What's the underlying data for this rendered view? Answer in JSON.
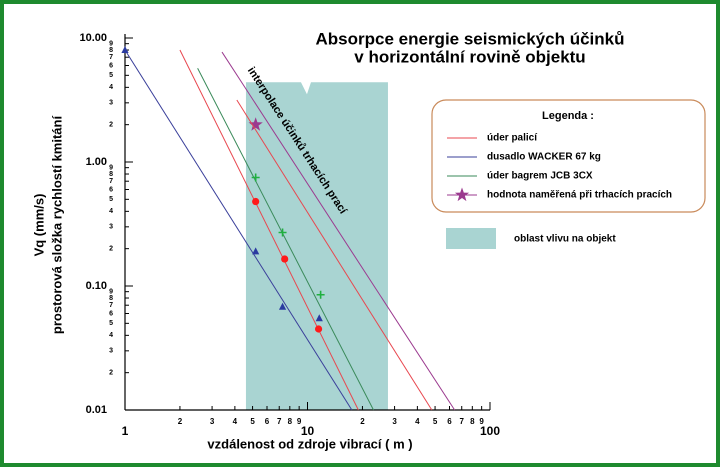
{
  "chart_data": {
    "type": "scatter",
    "title": "Absorpce energie seismických účinků",
    "subtitle": "v horizontální rovině objektu",
    "x_label": "vzdálenost od zdroje vibrací ( m )",
    "y_label": "Vq (mm/s)",
    "y_label_2": "prostorová složka rychlostí kmitání",
    "log_x": true,
    "log_y": true,
    "xlim": [
      1,
      100
    ],
    "ylim": [
      0.01,
      10
    ],
    "xticks": [
      1,
      2,
      3,
      4,
      5,
      6,
      7,
      8,
      9,
      10,
      {
        "value": 20,
        "label": "2"
      },
      {
        "value": 30,
        "label": "3"
      },
      {
        "value": 40,
        "label": "4"
      },
      {
        "value": 50,
        "label": "5"
      },
      {
        "value": 60,
        "label": "6"
      },
      {
        "value": 70,
        "label": "7"
      },
      {
        "value": 80,
        "label": "8"
      },
      {
        "value": 90,
        "label": "9"
      },
      100
    ],
    "yticks": [
      {
        "value": 0.01,
        "label": "0.01"
      },
      {
        "value": 0.02,
        "label": "2"
      },
      {
        "value": 0.03,
        "label": "3"
      },
      {
        "value": 0.04,
        "label": "4"
      },
      {
        "value": 0.05,
        "label": "5"
      },
      {
        "value": 0.06,
        "label": "6"
      },
      {
        "value": 0.07,
        "label": "7"
      },
      {
        "value": 0.08,
        "label": "8"
      },
      {
        "value": 0.09,
        "label": "9"
      },
      {
        "value": 0.1,
        "label": "0.10"
      },
      {
        "value": 0.2,
        "label": "2"
      },
      {
        "value": 0.3,
        "label": "3"
      },
      {
        "value": 0.4,
        "label": "4"
      },
      {
        "value": 0.5,
        "label": "5"
      },
      {
        "value": 0.6,
        "label": "6"
      },
      {
        "value": 0.7,
        "label": "7"
      },
      {
        "value": 0.8,
        "label": "8"
      },
      {
        "value": 0.9,
        "label": "9"
      },
      {
        "value": 1,
        "label": "1.00"
      },
      2,
      3,
      4,
      5,
      6,
      7,
      8,
      9,
      {
        "value": 10,
        "label": "10.00"
      }
    ],
    "region": {
      "name": "oblast vlivu na objekt",
      "color": "#a9d4d2",
      "x": [
        4.6,
        27.6
      ],
      "y": [
        0.01,
        4.4
      ]
    },
    "annotation": "interpolace účinků trhacích prací",
    "legend_title": "Legenda :",
    "series": [
      {
        "name": "úder  palicí",
        "color": "#e8474f",
        "marker": "line",
        "x": [
          2,
          19
        ],
        "values": [
          8,
          0.01
        ]
      },
      {
        "name": "dusadlo  WACKER 67 kg",
        "color": "#3a3f9a",
        "marker": "line",
        "x": [
          1,
          17.5
        ],
        "values": [
          8,
          0.01
        ]
      },
      {
        "name": "úder  bagrem  JCB  3CX",
        "color": "#3a8a5a",
        "marker": "line",
        "x": [
          2.5,
          23
        ],
        "values": [
          5.7,
          0.01
        ]
      },
      {
        "name": "hodnota naměřená při trhacích pracích",
        "color": "#9b3a8f",
        "marker": "star",
        "x": [
          5.2
        ],
        "values": [
          2
        ]
      },
      {
        "color": "#9b3a8f",
        "marker": "line",
        "x": [
          3.4,
          64
        ],
        "values": [
          7.7,
          0.01
        ]
      },
      {
        "color": "#e8474f",
        "marker": "line",
        "x": [
          4.1,
          48
        ],
        "values": [
          3.16,
          0.01
        ]
      },
      {
        "color": "#ff1a1a",
        "marker": "circle",
        "x": [
          5.2,
          7.5,
          11.5
        ],
        "values": [
          0.48,
          0.165,
          0.045
        ]
      },
      {
        "color": "#20b040",
        "marker": "plus",
        "x": [
          5.2,
          7.3,
          11.8
        ],
        "values": [
          0.75,
          0.27,
          0.085
        ]
      },
      {
        "color": "#2a3aa0",
        "marker": "triangle",
        "x": [
          1,
          5.2,
          7.3,
          11.6
        ],
        "values": [
          8,
          0.19,
          0.068,
          0.055
        ]
      }
    ]
  }
}
